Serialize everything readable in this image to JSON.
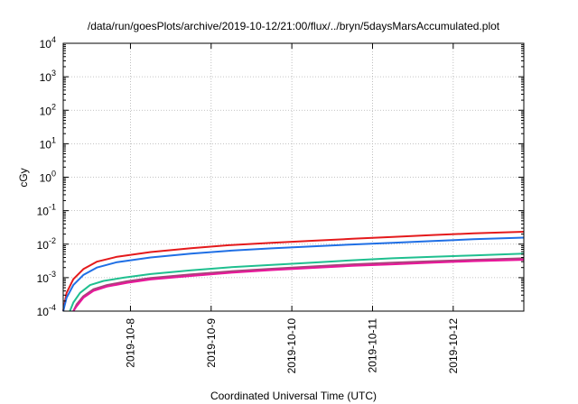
{
  "chart_data": {
    "type": "line",
    "title": "/data/run/goesPlots/archive/2019-10-12/21:00/flux/../bryn/5daysMarsAccumulated.plot",
    "xlabel": "Coordinated Universal Time (UTC)",
    "ylabel": "cGy",
    "x_tick_labels": [
      "2019-10-8",
      "2019-10-9",
      "2019-10-10",
      "2019-10-11",
      "2019-10-12"
    ],
    "y_tick_labels": [
      {
        "base": "10",
        "exp": "-4"
      },
      {
        "base": "10",
        "exp": "-3"
      },
      {
        "base": "10",
        "exp": "-2"
      },
      {
        "base": "10",
        "exp": "-1"
      },
      {
        "base": "10",
        "exp": "0"
      },
      {
        "base": "10",
        "exp": "1"
      },
      {
        "base": "10",
        "exp": "2"
      },
      {
        "base": "10",
        "exp": "3"
      },
      {
        "base": "10",
        "exp": "4"
      }
    ],
    "xlim": [
      "2019-10-07T04:00",
      "2019-10-12T21:00"
    ],
    "ylim": [
      0.0001,
      10000
    ],
    "y_scale": "log",
    "grid": true,
    "legend": "none",
    "series": [
      {
        "color": "#e41a1c",
        "x": [
          "2019-10-07T04:00",
          "2019-10-07T05:00",
          "2019-10-07T07:00",
          "2019-10-07T10:00",
          "2019-10-07T14:00",
          "2019-10-07T20:00",
          "2019-10-08T06:00",
          "2019-10-08T18:00",
          "2019-10-09T06:00",
          "2019-10-09T18:00",
          "2019-10-10T06:00",
          "2019-10-10T18:00",
          "2019-10-11T06:00",
          "2019-10-11T18:00",
          "2019-10-12T06:00",
          "2019-10-12T21:00"
        ],
        "y": [
          0.0001,
          0.00035,
          0.0009,
          0.0018,
          0.003,
          0.0042,
          0.0058,
          0.0076,
          0.0094,
          0.011,
          0.0126,
          0.0145,
          0.0165,
          0.0188,
          0.021,
          0.0235
        ]
      },
      {
        "color": "#1f6fe5",
        "x": [
          "2019-10-07T04:00",
          "2019-10-07T05:00",
          "2019-10-07T07:00",
          "2019-10-07T10:00",
          "2019-10-07T14:00",
          "2019-10-07T20:00",
          "2019-10-08T06:00",
          "2019-10-08T18:00",
          "2019-10-09T06:00",
          "2019-10-09T18:00",
          "2019-10-10T06:00",
          "2019-10-10T18:00",
          "2019-10-11T06:00",
          "2019-10-11T18:00",
          "2019-10-12T06:00",
          "2019-10-12T21:00"
        ],
        "y": [
          0.0001,
          0.00025,
          0.0006,
          0.0012,
          0.002,
          0.0029,
          0.004,
          0.0052,
          0.0064,
          0.0075,
          0.0086,
          0.0098,
          0.011,
          0.0125,
          0.014,
          0.0157
        ]
      },
      {
        "color": "#1fbf8f",
        "x": [
          "2019-10-07T06:00",
          "2019-10-07T07:00",
          "2019-10-07T09:00",
          "2019-10-07T12:00",
          "2019-10-07T16:00",
          "2019-10-07T22:00",
          "2019-10-08T06:00",
          "2019-10-08T18:00",
          "2019-10-09T06:00",
          "2019-10-09T18:00",
          "2019-10-10T06:00",
          "2019-10-10T18:00",
          "2019-10-11T06:00",
          "2019-10-11T18:00",
          "2019-10-12T06:00",
          "2019-10-12T21:00"
        ],
        "y": [
          0.0001,
          0.00018,
          0.00035,
          0.0006,
          0.0008,
          0.001,
          0.00128,
          0.00165,
          0.00205,
          0.0024,
          0.0028,
          0.0033,
          0.0038,
          0.0042,
          0.0046,
          0.0052
        ]
      },
      {
        "color": "#a8447a",
        "x": [
          "2019-10-07T07:00",
          "2019-10-07T08:00",
          "2019-10-07T10:00",
          "2019-10-07T13:00",
          "2019-10-07T17:00",
          "2019-10-07T23:00",
          "2019-10-08T06:00",
          "2019-10-08T18:00",
          "2019-10-09T06:00",
          "2019-10-09T18:00",
          "2019-10-10T06:00",
          "2019-10-10T18:00",
          "2019-10-11T06:00",
          "2019-10-11T18:00",
          "2019-10-12T06:00",
          "2019-10-12T21:00"
        ],
        "y": [
          0.0001,
          0.00016,
          0.00028,
          0.00045,
          0.0006,
          0.00078,
          0.00098,
          0.00125,
          0.00155,
          0.00185,
          0.00215,
          0.0025,
          0.0028,
          0.0031,
          0.0034,
          0.0038
        ]
      },
      {
        "color": "#e8179a",
        "x": [
          "2019-10-07T07:00",
          "2019-10-07T08:00",
          "2019-10-07T10:00",
          "2019-10-07T13:00",
          "2019-10-07T17:00",
          "2019-10-07T23:00",
          "2019-10-08T06:00",
          "2019-10-08T18:00",
          "2019-10-09T06:00",
          "2019-10-09T18:00",
          "2019-10-10T06:00",
          "2019-10-10T18:00",
          "2019-10-11T06:00",
          "2019-10-11T18:00",
          "2019-10-12T06:00",
          "2019-10-12T21:00"
        ],
        "y": [
          0.0001,
          0.00014,
          0.00025,
          0.0004,
          0.00054,
          0.0007,
          0.00088,
          0.00112,
          0.0014,
          0.00168,
          0.00195,
          0.00225,
          0.0025,
          0.0028,
          0.0031,
          0.0034
        ]
      }
    ]
  }
}
